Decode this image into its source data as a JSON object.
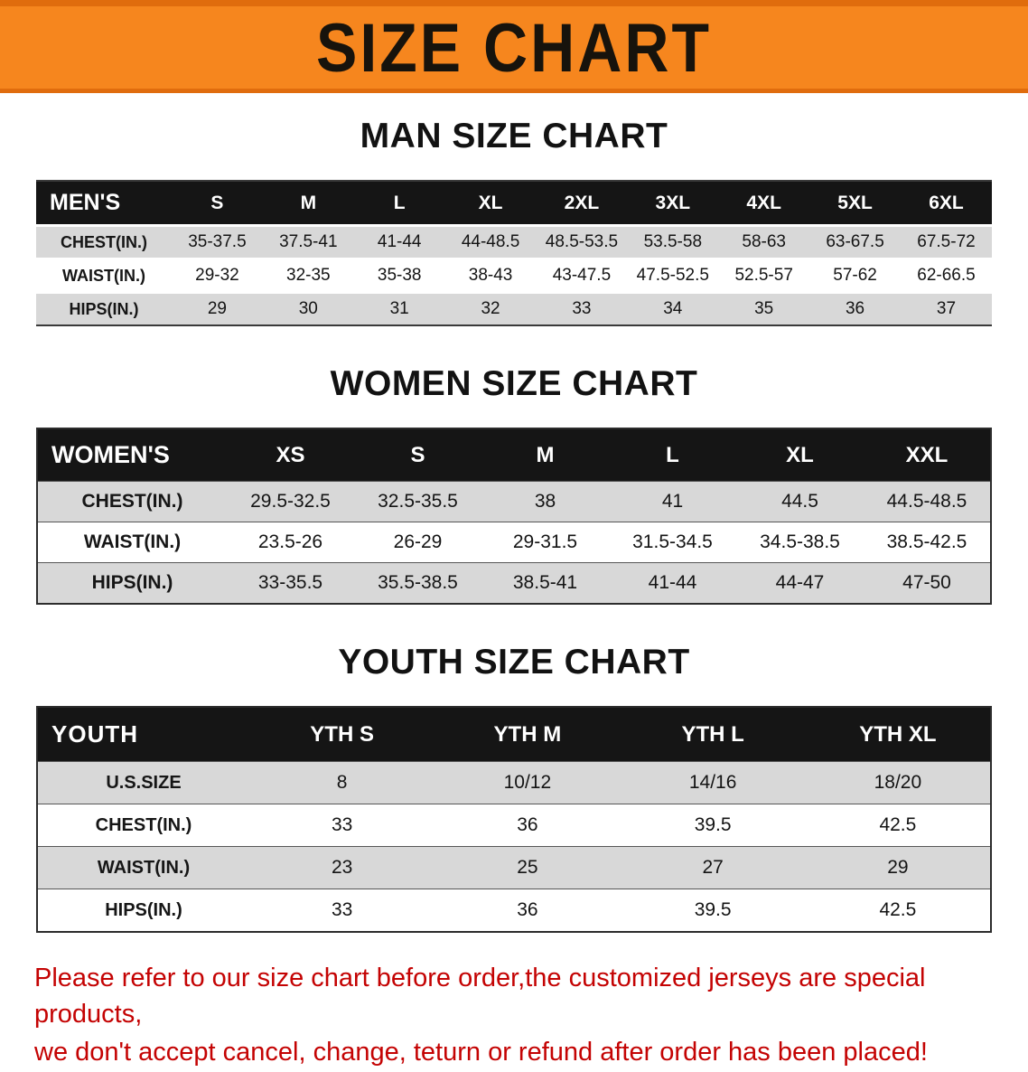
{
  "banner": {
    "title": "SIZE CHART",
    "bg_color": "#f6861e",
    "text_color": "#17130c"
  },
  "sections": [
    {
      "heading": "MAN SIZE CHART",
      "table": {
        "header": [
          "MEN'S",
          "S",
          "M",
          "L",
          "XL",
          "2XL",
          "3XL",
          "4XL",
          "5XL",
          "6XL"
        ],
        "rows": [
          {
            "label": "CHEST(IN.)",
            "values": [
              "35-37.5",
              "37.5-41",
              "41-44",
              "44-48.5",
              "48.5-53.5",
              "53.5-58",
              "58-63",
              "63-67.5",
              "67.5-72"
            ]
          },
          {
            "label": "WAIST(IN.)",
            "values": [
              "29-32",
              "32-35",
              "35-38",
              "38-43",
              "43-47.5",
              "47.5-52.5",
              "52.5-57",
              "57-62",
              "62-66.5"
            ]
          },
          {
            "label": "HIPS(IN.)",
            "values": [
              "29",
              "30",
              "31",
              "32",
              "33",
              "34",
              "35",
              "36",
              "37"
            ]
          }
        ]
      }
    },
    {
      "heading": "WOMEN SIZE CHART",
      "table": {
        "header": [
          "WOMEN'S",
          "XS",
          "S",
          "M",
          "L",
          "XL",
          "XXL"
        ],
        "rows": [
          {
            "label": "CHEST(IN.)",
            "values": [
              "29.5-32.5",
              "32.5-35.5",
              "38",
              "41",
              "44.5",
              "44.5-48.5"
            ]
          },
          {
            "label": "WAIST(IN.)",
            "values": [
              "23.5-26",
              "26-29",
              "29-31.5",
              "31.5-34.5",
              "34.5-38.5",
              "38.5-42.5"
            ]
          },
          {
            "label": "HIPS(IN.)",
            "values": [
              "33-35.5",
              "35.5-38.5",
              "38.5-41",
              "41-44",
              "44-47",
              "47-50"
            ]
          }
        ]
      }
    },
    {
      "heading": "YOUTH SIZE CHART",
      "table": {
        "header": [
          "YOUTH",
          "YTH S",
          "YTH M",
          "YTH L",
          "YTH XL"
        ],
        "rows": [
          {
            "label": "U.S.SIZE",
            "values": [
              "8",
              "10/12",
              "14/16",
              "18/20"
            ]
          },
          {
            "label": "CHEST(IN.)",
            "values": [
              "33",
              "36",
              "39.5",
              "42.5"
            ]
          },
          {
            "label": "WAIST(IN.)",
            "values": [
              "23",
              "25",
              "27",
              "29"
            ]
          },
          {
            "label": "HIPS(IN.)",
            "values": [
              "33",
              "36",
              "39.5",
              "42.5"
            ]
          }
        ]
      }
    }
  ],
  "disclaimer": {
    "line1": "Please refer to our size chart before order,the customized jerseys are special products,",
    "line2": "we don't accept cancel, change, teturn or refund after order has been placed!",
    "color": "#c40303"
  }
}
